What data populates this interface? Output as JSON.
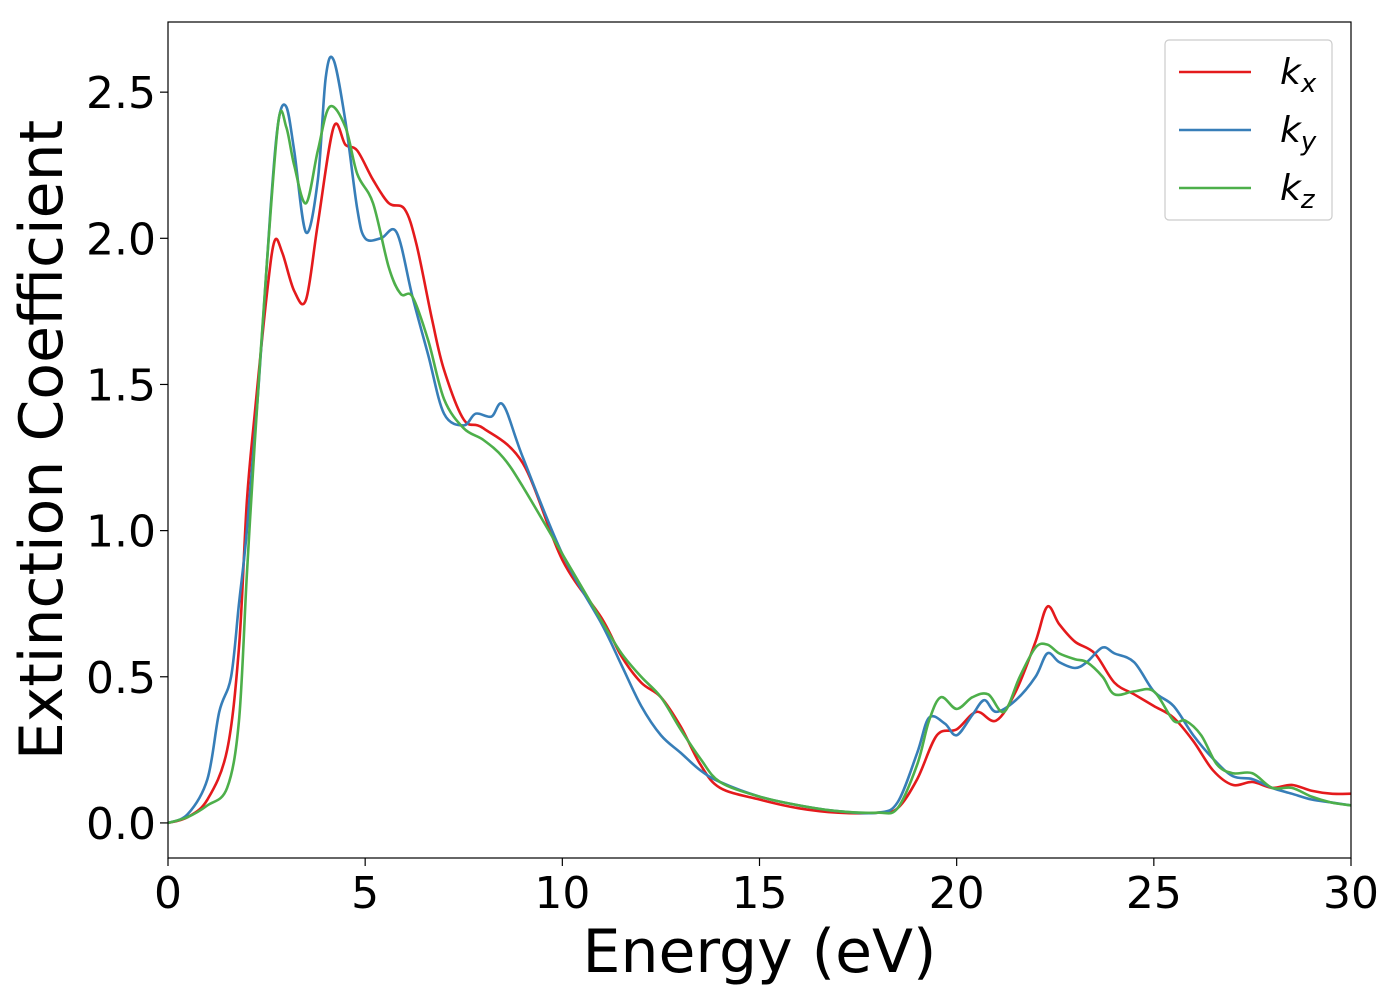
{
  "chart_data": {
    "type": "line",
    "title": "",
    "xlabel": "Energy (eV)",
    "ylabel": "Extinction Coefficient",
    "xlim": [
      0,
      30
    ],
    "ylim": [
      -0.12,
      2.74
    ],
    "xticks": [
      0,
      5,
      10,
      15,
      20,
      25,
      30
    ],
    "xtick_labels": [
      "0",
      "5",
      "10",
      "15",
      "20",
      "25",
      "30"
    ],
    "yticks": [
      0.0,
      0.5,
      1.0,
      1.5,
      2.0,
      2.5
    ],
    "ytick_labels": [
      "0.0",
      "0.5",
      "1.0",
      "1.5",
      "2.0",
      "2.5"
    ],
    "grid": false,
    "legend_position": "top-right",
    "series": [
      {
        "name": "k_x",
        "label_main": "k",
        "label_sub": "x",
        "color": "#e41a1c",
        "x": [
          0,
          0.5,
          1.0,
          1.5,
          1.8,
          2.0,
          2.2,
          2.5,
          2.7,
          2.9,
          3.2,
          3.5,
          3.8,
          4.2,
          4.5,
          4.8,
          5.2,
          5.6,
          6.0,
          6.3,
          6.7,
          7.0,
          7.5,
          8.0,
          9.0,
          10.0,
          11.0,
          11.5,
          12.0,
          12.5,
          13.0,
          13.5,
          14.0,
          15.0,
          16.0,
          17.0,
          18.0,
          18.5,
          19.0,
          19.5,
          20.0,
          20.5,
          21.0,
          21.5,
          22.0,
          22.3,
          22.6,
          23.0,
          23.5,
          24.0,
          24.5,
          25.0,
          25.5,
          26.0,
          26.5,
          27.0,
          27.5,
          28.0,
          28.5,
          29.0,
          29.5,
          30.0
        ],
        "y": [
          0.0,
          0.02,
          0.08,
          0.25,
          0.6,
          1.1,
          1.4,
          1.8,
          1.99,
          1.95,
          1.82,
          1.79,
          2.05,
          2.38,
          2.32,
          2.3,
          2.2,
          2.12,
          2.1,
          1.98,
          1.72,
          1.55,
          1.38,
          1.35,
          1.23,
          0.9,
          0.7,
          0.57,
          0.48,
          0.43,
          0.33,
          0.2,
          0.12,
          0.08,
          0.05,
          0.035,
          0.035,
          0.05,
          0.15,
          0.3,
          0.32,
          0.38,
          0.35,
          0.45,
          0.62,
          0.74,
          0.68,
          0.62,
          0.58,
          0.48,
          0.44,
          0.4,
          0.36,
          0.28,
          0.18,
          0.13,
          0.14,
          0.12,
          0.13,
          0.11,
          0.1,
          0.1
        ]
      },
      {
        "name": "k_y",
        "label_main": "k",
        "label_sub": "y",
        "color": "#377eb8",
        "x": [
          0,
          0.5,
          1.0,
          1.3,
          1.6,
          1.8,
          2.0,
          2.3,
          2.6,
          2.8,
          3.0,
          3.2,
          3.5,
          3.8,
          4.0,
          4.2,
          4.5,
          4.8,
          5.0,
          5.4,
          5.8,
          6.2,
          6.6,
          7.0,
          7.5,
          7.8,
          8.2,
          8.5,
          9.0,
          10.0,
          11.0,
          11.5,
          12.0,
          12.5,
          13.0,
          13.5,
          14.0,
          15.0,
          16.0,
          17.0,
          18.0,
          18.5,
          19.0,
          19.3,
          19.7,
          20.0,
          20.4,
          20.7,
          21.0,
          21.5,
          22.0,
          22.3,
          22.6,
          23.0,
          23.3,
          23.7,
          24.0,
          24.5,
          25.0,
          25.5,
          26.0,
          26.5,
          27.0,
          27.5,
          28.0,
          28.5,
          29.0,
          29.5,
          30.0
        ],
        "y": [
          0.0,
          0.03,
          0.15,
          0.38,
          0.5,
          0.75,
          1.0,
          1.5,
          2.1,
          2.4,
          2.45,
          2.3,
          2.02,
          2.2,
          2.55,
          2.61,
          2.4,
          2.1,
          2.0,
          2.0,
          2.02,
          1.8,
          1.6,
          1.4,
          1.36,
          1.4,
          1.39,
          1.43,
          1.25,
          0.92,
          0.68,
          0.54,
          0.4,
          0.3,
          0.24,
          0.18,
          0.14,
          0.09,
          0.06,
          0.04,
          0.035,
          0.07,
          0.24,
          0.36,
          0.34,
          0.3,
          0.37,
          0.42,
          0.38,
          0.42,
          0.5,
          0.58,
          0.55,
          0.53,
          0.55,
          0.6,
          0.58,
          0.55,
          0.45,
          0.4,
          0.3,
          0.22,
          0.16,
          0.15,
          0.12,
          0.1,
          0.08,
          0.07,
          0.06
        ]
      },
      {
        "name": "k_z",
        "label_main": "k",
        "label_sub": "z",
        "color": "#4daf4a",
        "x": [
          0,
          0.5,
          1.0,
          1.5,
          1.8,
          2.0,
          2.2,
          2.5,
          2.8,
          3.0,
          3.2,
          3.5,
          3.8,
          4.1,
          4.5,
          4.8,
          5.2,
          5.6,
          5.9,
          6.2,
          6.6,
          7.0,
          7.5,
          8.0,
          8.5,
          9.0,
          10.0,
          11.0,
          11.5,
          12.0,
          12.5,
          13.0,
          13.5,
          14.0,
          15.0,
          16.0,
          17.0,
          18.0,
          18.5,
          19.0,
          19.3,
          19.6,
          20.0,
          20.4,
          20.8,
          21.2,
          21.6,
          22.0,
          22.3,
          22.6,
          23.0,
          23.3,
          23.7,
          24.0,
          24.5,
          25.0,
          25.5,
          25.8,
          26.2,
          26.6,
          27.0,
          27.5,
          28.0,
          28.5,
          29.0,
          29.5,
          30.0
        ],
        "y": [
          0.0,
          0.02,
          0.06,
          0.12,
          0.35,
          0.85,
          1.3,
          1.9,
          2.4,
          2.38,
          2.25,
          2.12,
          2.3,
          2.45,
          2.38,
          2.22,
          2.12,
          1.9,
          1.81,
          1.8,
          1.65,
          1.45,
          1.35,
          1.31,
          1.25,
          1.15,
          0.92,
          0.69,
          0.58,
          0.5,
          0.43,
          0.32,
          0.22,
          0.14,
          0.09,
          0.06,
          0.04,
          0.035,
          0.05,
          0.2,
          0.35,
          0.43,
          0.39,
          0.43,
          0.44,
          0.38,
          0.5,
          0.6,
          0.61,
          0.58,
          0.56,
          0.55,
          0.5,
          0.44,
          0.45,
          0.45,
          0.35,
          0.35,
          0.3,
          0.2,
          0.17,
          0.17,
          0.12,
          0.12,
          0.09,
          0.07,
          0.06
        ]
      }
    ]
  }
}
